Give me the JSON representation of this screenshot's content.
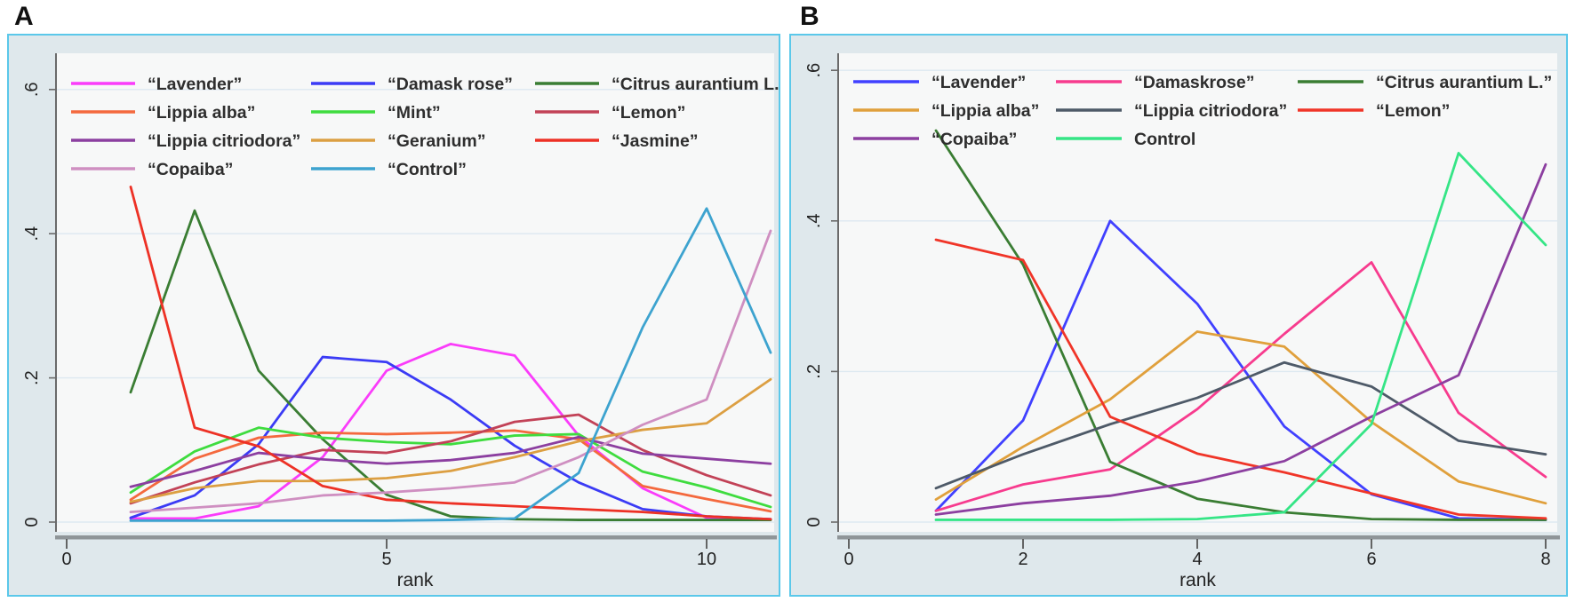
{
  "figure": {
    "frame_border_color": "#5bc8ea",
    "frame_bg": "#dfe8ec",
    "plot_bg": "#f7f8f8",
    "gridline_color": "#dde9f1",
    "axis_color": "#6a6a6a",
    "axis_band_color": "#8f9598",
    "text_color": "#2e2e2e"
  },
  "chart_data": [
    {
      "panel_label": "A",
      "type": "line",
      "title": "",
      "xlabel": "rank",
      "ylabel": "",
      "x": [
        1,
        2,
        3,
        4,
        5,
        6,
        7,
        8,
        9,
        10,
        11
      ],
      "x_ticks": [
        0,
        5,
        10
      ],
      "x_tick_labels": [
        "0",
        "5",
        "10"
      ],
      "y_ticks": [
        0,
        0.2,
        0.4,
        0.6
      ],
      "y_tick_labels": [
        "0",
        ".2",
        ".4",
        ".6"
      ],
      "ylim": [
        0,
        0.65
      ],
      "grid": true,
      "legend_position": "top-left-inside",
      "series": [
        {
          "name": "lavender",
          "label": "“Lavender”",
          "color": "#fa3cfa",
          "values": [
            0.005,
            0.005,
            0.022,
            0.09,
            0.21,
            0.247,
            0.231,
            0.12,
            0.047,
            0.006,
            0.004
          ]
        },
        {
          "name": "damask-rose",
          "label": "“Damask rose”",
          "color": "#3b3bf5",
          "values": [
            0.006,
            0.037,
            0.108,
            0.229,
            0.222,
            0.17,
            0.106,
            0.055,
            0.018,
            0.008,
            0.004
          ]
        },
        {
          "name": "citrus-aurantium",
          "label": "“Citrus aurantium L.”",
          "color": "#3a7d33",
          "values": [
            0.18,
            0.432,
            0.21,
            0.115,
            0.038,
            0.008,
            0.004,
            0.003,
            0.003,
            0.003,
            0.003
          ]
        },
        {
          "name": "lippia-alba",
          "label": "“Lippia alba”",
          "color": "#f4693e",
          "values": [
            0.031,
            0.088,
            0.117,
            0.124,
            0.122,
            0.124,
            0.127,
            0.115,
            0.05,
            0.032,
            0.015
          ]
        },
        {
          "name": "mint",
          "label": "“Mint”",
          "color": "#3fdc3f",
          "values": [
            0.041,
            0.098,
            0.131,
            0.117,
            0.111,
            0.108,
            0.12,
            0.122,
            0.07,
            0.048,
            0.021
          ]
        },
        {
          "name": "lemon",
          "label": "“Lemon”",
          "color": "#c24257",
          "values": [
            0.026,
            0.055,
            0.08,
            0.1,
            0.096,
            0.112,
            0.139,
            0.149,
            0.1,
            0.065,
            0.037
          ]
        },
        {
          "name": "lippia-citriodora",
          "label": "“Lippia citriodora”",
          "color": "#8c3fa0",
          "values": [
            0.049,
            0.071,
            0.096,
            0.087,
            0.081,
            0.086,
            0.096,
            0.118,
            0.095,
            0.088,
            0.081
          ]
        },
        {
          "name": "geranium",
          "label": "“Geranium”",
          "color": "#dc9f42",
          "values": [
            0.028,
            0.047,
            0.057,
            0.057,
            0.061,
            0.071,
            0.09,
            0.112,
            0.128,
            0.137,
            0.198
          ]
        },
        {
          "name": "jasmine",
          "label": "“Jasmine”",
          "color": "#ed3125",
          "values": [
            0.465,
            0.131,
            0.105,
            0.05,
            0.031,
            0.026,
            0.022,
            0.018,
            0.014,
            0.008,
            0.004
          ]
        },
        {
          "name": "copaiba",
          "label": "“Copaiba”",
          "color": "#cf8fc1",
          "values": [
            0.014,
            0.02,
            0.026,
            0.037,
            0.041,
            0.047,
            0.055,
            0.09,
            0.135,
            0.17,
            0.404
          ]
        },
        {
          "name": "control",
          "label": "“Control”",
          "color": "#3da3cf",
          "values": [
            0.002,
            0.002,
            0.002,
            0.002,
            0.002,
            0.003,
            0.005,
            0.068,
            0.27,
            0.435,
            0.235
          ]
        }
      ]
    },
    {
      "panel_label": "B",
      "type": "line",
      "title": "",
      "xlabel": "rank",
      "ylabel": "",
      "x": [
        1,
        2,
        3,
        4,
        5,
        6,
        7,
        8
      ],
      "x_ticks": [
        0,
        2,
        4,
        6,
        8
      ],
      "x_tick_labels": [
        "0",
        "2",
        "4",
        "6",
        "8"
      ],
      "y_ticks": [
        0,
        0.2,
        0.4,
        0.6
      ],
      "y_tick_labels": [
        "0",
        ".2",
        ".4",
        ".6"
      ],
      "ylim": [
        0,
        0.62
      ],
      "grid": true,
      "legend_position": "top-left-inside",
      "series": [
        {
          "name": "lavender",
          "label": "“Lavender”",
          "color": "#4040ff",
          "values": [
            0.015,
            0.135,
            0.4,
            0.29,
            0.127,
            0.037,
            0.005,
            0.003
          ]
        },
        {
          "name": "damaskrose",
          "label": "“Damaskrose”",
          "color": "#f73b8e",
          "values": [
            0.015,
            0.05,
            0.07,
            0.15,
            0.25,
            0.345,
            0.145,
            0.06
          ]
        },
        {
          "name": "citrus-aurantium",
          "label": "“Citrus aurantium L.”",
          "color": "#3a7d33",
          "values": [
            0.52,
            0.342,
            0.08,
            0.031,
            0.013,
            0.004,
            0.003,
            0.003
          ]
        },
        {
          "name": "lippia-alba",
          "label": "“Lippia alba”",
          "color": "#e0a03c",
          "values": [
            0.03,
            0.1,
            0.163,
            0.253,
            0.233,
            0.133,
            0.054,
            0.025
          ]
        },
        {
          "name": "lippia-citriodora",
          "label": "“Lippia citriodora”",
          "color": "#4e5a68",
          "values": [
            0.045,
            0.09,
            0.13,
            0.165,
            0.212,
            0.18,
            0.108,
            0.09
          ]
        },
        {
          "name": "lemon",
          "label": "“Lemon”",
          "color": "#f03528",
          "values": [
            0.375,
            0.348,
            0.14,
            0.091,
            0.066,
            0.038,
            0.01,
            0.005
          ]
        },
        {
          "name": "copaiba",
          "label": "“Copaiba”",
          "color": "#8c3fa0",
          "values": [
            0.01,
            0.025,
            0.035,
            0.054,
            0.081,
            0.14,
            0.195,
            0.475
          ]
        },
        {
          "name": "control",
          "label": "Control",
          "color": "#35e586",
          "values": [
            0.003,
            0.003,
            0.003,
            0.004,
            0.013,
            0.13,
            0.49,
            0.368
          ]
        }
      ]
    }
  ]
}
